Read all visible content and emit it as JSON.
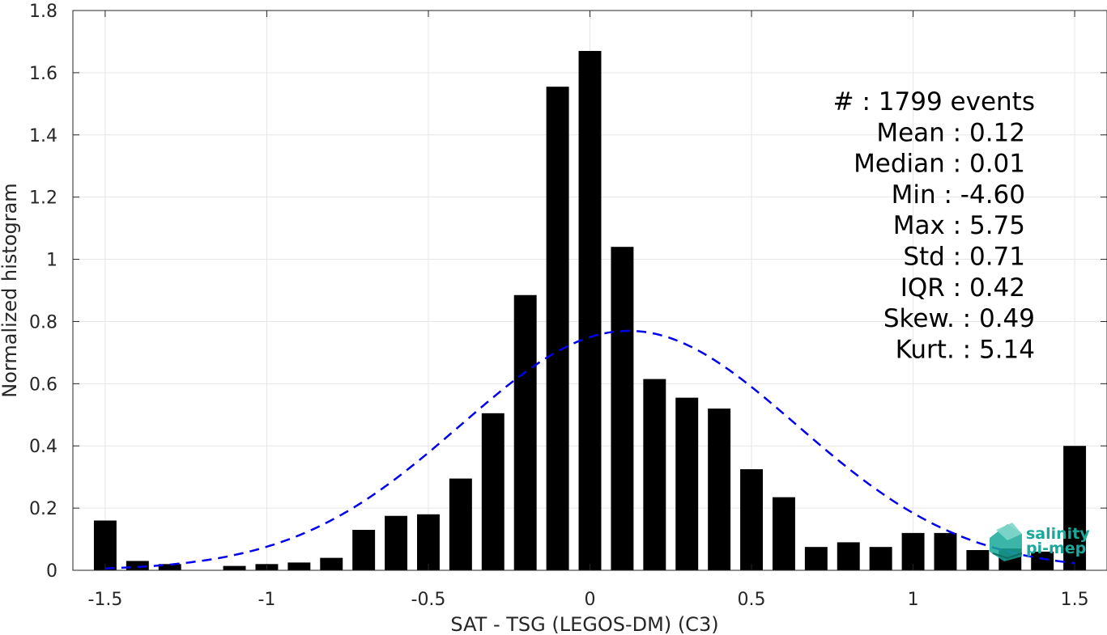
{
  "chart_data": {
    "type": "bar",
    "xlabel": "SAT - TSG (LEGOS-DM) (C3)",
    "ylabel": "Normalized histogram",
    "xlim": [
      -1.6,
      1.6
    ],
    "ylim": [
      0,
      1.8
    ],
    "xticks": [
      -1.5,
      -1,
      -0.5,
      0,
      0.5,
      1,
      1.5
    ],
    "xtick_labels": [
      "-1.5",
      "-1",
      "-0.5",
      "0",
      "0.5",
      "1",
      "1.5"
    ],
    "yticks": [
      0,
      0.2,
      0.4,
      0.6,
      0.8,
      1,
      1.2,
      1.4,
      1.6,
      1.8
    ],
    "ytick_labels": [
      "0",
      "0.2",
      "0.4",
      "0.6",
      "0.8",
      "1",
      "1.2",
      "1.4",
      "1.6",
      "1.8"
    ],
    "grid": true,
    "bar_color": "#000000",
    "bars": {
      "x": [
        -1.5,
        -1.4,
        -1.3,
        -1.2,
        -1.1,
        -1.0,
        -0.9,
        -0.8,
        -0.7,
        -0.6,
        -0.5,
        -0.4,
        -0.3,
        -0.2,
        -0.1,
        0.0,
        0.1,
        0.2,
        0.3,
        0.4,
        0.5,
        0.6,
        0.7,
        0.8,
        0.9,
        1.0,
        1.1,
        1.2,
        1.3,
        1.4,
        1.5
      ],
      "values": [
        0.16,
        0.03,
        0.02,
        0.0,
        0.014,
        0.02,
        0.025,
        0.04,
        0.13,
        0.175,
        0.18,
        0.295,
        0.505,
        0.885,
        1.555,
        1.67,
        1.04,
        0.615,
        0.555,
        0.52,
        0.325,
        0.235,
        0.075,
        0.09,
        0.075,
        0.12,
        0.12,
        0.065,
        0.07,
        0.06,
        0.4
      ]
    },
    "fit_curve": {
      "kind": "gaussian",
      "style": "dashed",
      "color": "#0000ee",
      "mean": 0.12,
      "std": 0.52,
      "peak": 0.77,
      "x_range": [
        -1.5,
        1.5
      ]
    },
    "annotations": [
      "#  : 1799 events",
      "Mean : 0.12",
      "Median : 0.01",
      "Min : -4.60",
      "Max : 5.75",
      "Std : 0.71",
      "IQR : 0.42",
      "Skew. : 0.49",
      "Kurt. : 5.14"
    ]
  },
  "logo": {
    "line1": "salinity",
    "line2": "pi-mep",
    "color": "#1aa89a"
  }
}
